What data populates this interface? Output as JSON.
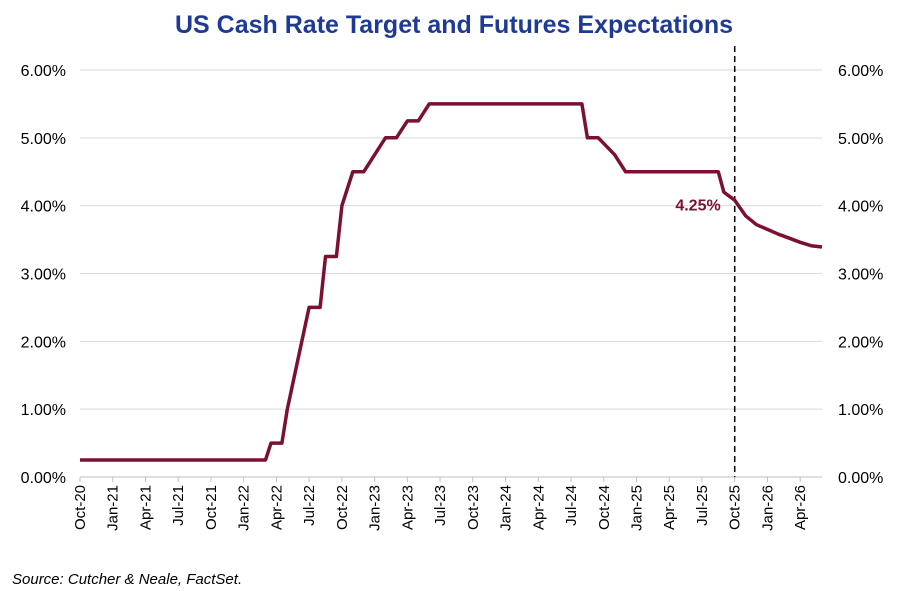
{
  "chart_data": {
    "type": "line",
    "title": "US Cash Rate Target and Futures Expectations",
    "source": "Source: Cutcher & Neale, FactSet.",
    "xlabel": "",
    "ylabel": "",
    "ylim": [
      0,
      6
    ],
    "y_ticks": [
      "0.00%",
      "1.00%",
      "2.00%",
      "3.00%",
      "4.00%",
      "5.00%",
      "6.00%"
    ],
    "y_tick_values": [
      0,
      1,
      2,
      3,
      4,
      5,
      6
    ],
    "x_ticks": [
      "Oct-20",
      "Jan-21",
      "Apr-21",
      "Jul-21",
      "Oct-21",
      "Jan-22",
      "Apr-22",
      "Jul-22",
      "Oct-22",
      "Jan-23",
      "Apr-23",
      "Jul-23",
      "Oct-23",
      "Jan-24",
      "Apr-24",
      "Jul-24",
      "Oct-24",
      "Jan-25",
      "Apr-25",
      "Jul-25",
      "Oct-25",
      "Jan-26",
      "Apr-26"
    ],
    "x_tick_values": [
      0,
      3,
      6,
      9,
      12,
      15,
      18,
      21,
      24,
      27,
      30,
      33,
      36,
      39,
      42,
      45,
      48,
      51,
      54,
      57,
      60,
      63,
      66
    ],
    "xlim": [
      0,
      68
    ],
    "grid": true,
    "line_color": "#7b1130",
    "series": [
      {
        "name": "US Cash Rate Target and Futures Expectations",
        "x": [
          0,
          17,
          17.5,
          18.5,
          19,
          20,
          21,
          22,
          22.5,
          23,
          23.5,
          24,
          25,
          26,
          27,
          28,
          29,
          30,
          31,
          32,
          33,
          46,
          46.5,
          47.5,
          49,
          50,
          58.5,
          59,
          60,
          61,
          62,
          63,
          64,
          65,
          66,
          67,
          68
        ],
        "y": [
          0.25,
          0.25,
          0.5,
          0.5,
          1.0,
          1.75,
          2.5,
          2.5,
          3.25,
          3.25,
          3.25,
          4.0,
          4.5,
          4.5,
          4.75,
          5.0,
          5.0,
          5.25,
          5.25,
          5.5,
          5.5,
          5.5,
          5.0,
          5.0,
          4.75,
          4.5,
          4.5,
          4.2,
          4.08,
          3.85,
          3.72,
          3.65,
          3.58,
          3.52,
          3.46,
          3.41,
          3.39
        ]
      }
    ],
    "vline": {
      "x": 60,
      "label": "Oct-25",
      "style": "dashed"
    },
    "annotation": {
      "text": "4.25%",
      "x": 60,
      "y": 4.0,
      "color": "#7b1130"
    }
  }
}
